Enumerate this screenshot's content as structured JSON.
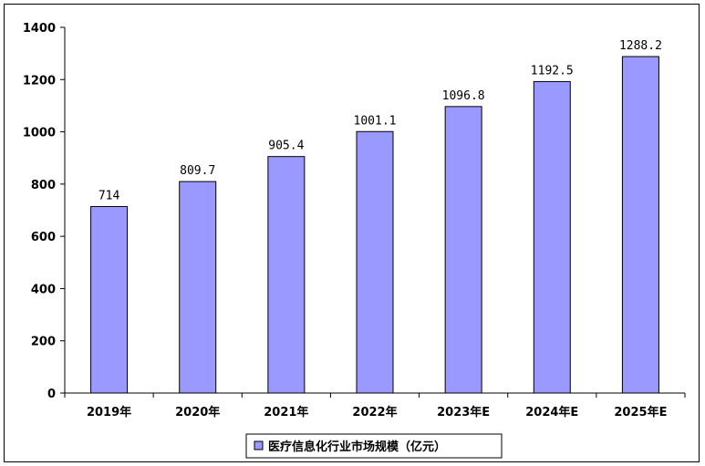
{
  "chart_data": {
    "type": "bar",
    "categories": [
      "2019年",
      "2020年",
      "2021年",
      "2022年",
      "2023年E",
      "2024年E",
      "2025年E"
    ],
    "series": [
      {
        "name": "医疗信息化行业市场规模（亿元）",
        "values": [
          714,
          809.7,
          905.4,
          1001.1,
          1096.8,
          1192.5,
          1288.2
        ],
        "labels": [
          "714",
          "809.7",
          "905.4",
          "1001.1",
          "1096.8",
          "1192.5",
          "1288.2"
        ]
      }
    ],
    "ylim": [
      0,
      1400
    ],
    "yticks": [
      "0",
      "200",
      "400",
      "600",
      "800",
      "1000",
      "1200",
      "1400"
    ],
    "grid": false,
    "legend_position": "bottom-center",
    "bar_color": "#9999ff",
    "bar_edge_color": "#000000"
  }
}
